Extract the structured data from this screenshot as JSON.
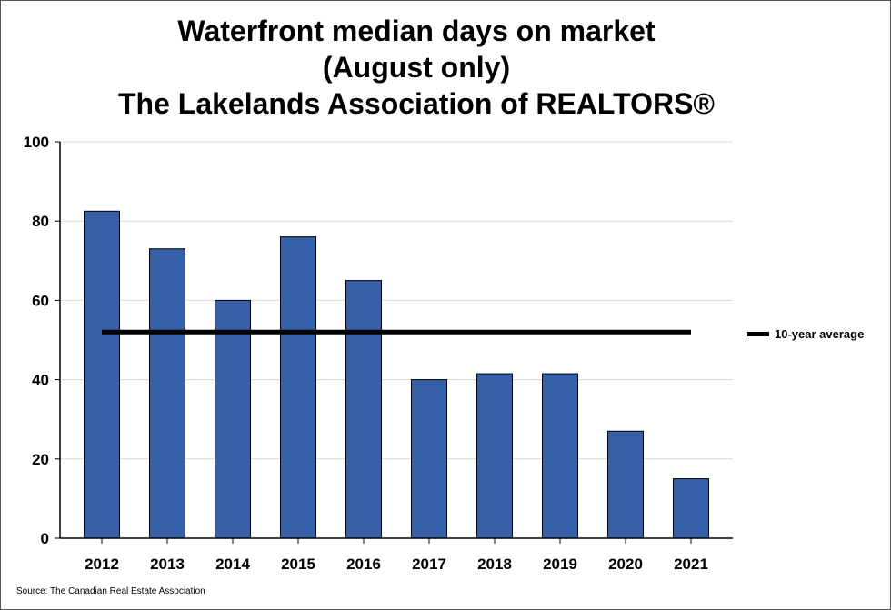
{
  "title_lines": [
    "Waterfront median days on market",
    "(August only)",
    "The Lakelands Association of REALTORS®"
  ],
  "source": "Source: The Canadian Real Estate Association",
  "colors": {
    "bar": "#3560a8",
    "average_line": "#000000",
    "grid": "#d9d9d9",
    "axis": "#000000"
  },
  "chart_data": {
    "type": "bar",
    "title": "Waterfront median days on market (August only) The Lakelands Association of REALTORS®",
    "categories": [
      "2012",
      "2013",
      "2014",
      "2015",
      "2016",
      "2017",
      "2018",
      "2019",
      "2020",
      "2021"
    ],
    "series": [
      {
        "values": [
          82.5,
          73,
          60,
          76,
          65,
          40,
          41.5,
          41.5,
          27,
          15
        ]
      }
    ],
    "reference_line": {
      "name": "10-year average",
      "value": 52
    },
    "ylim": [
      0,
      100
    ],
    "yticks": [
      0,
      20,
      40,
      60,
      80,
      100
    ],
    "grid": true,
    "legend_position": "right"
  }
}
